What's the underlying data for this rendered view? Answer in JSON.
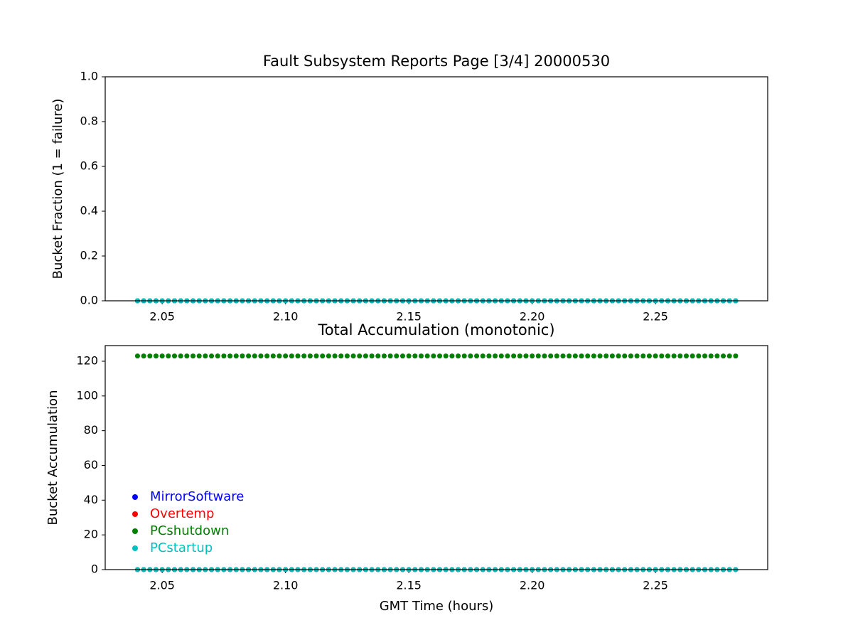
{
  "chart_data": [
    {
      "type": "scatter",
      "title": "Fault Subsystem Reports Page [3/4] 20000530",
      "y_label": "Bucket Fraction (1 = failure)",
      "x": [
        2.04,
        2.0425,
        2.045,
        2.0475,
        2.05,
        2.0525,
        2.055,
        2.0575,
        2.06,
        2.0625,
        2.065,
        2.0675,
        2.07,
        2.0725,
        2.075,
        2.0775,
        2.08,
        2.0825,
        2.085,
        2.0875,
        2.09,
        2.0925,
        2.095,
        2.0975,
        2.1,
        2.1025,
        2.105,
        2.1075,
        2.11,
        2.1125,
        2.115,
        2.1175,
        2.12,
        2.1225,
        2.125,
        2.1275,
        2.13,
        2.1325,
        2.135,
        2.1375,
        2.14,
        2.1425,
        2.145,
        2.1475,
        2.15,
        2.1525,
        2.155,
        2.1575,
        2.16,
        2.1625,
        2.165,
        2.1675,
        2.17,
        2.1725,
        2.175,
        2.1775,
        2.18,
        2.1825,
        2.185,
        2.1875,
        2.19,
        2.1925,
        2.195,
        2.1975,
        2.2,
        2.2025,
        2.205,
        2.2075,
        2.21,
        2.2125,
        2.215,
        2.2175,
        2.22,
        2.2225,
        2.225,
        2.2275,
        2.23,
        2.2325,
        2.235,
        2.2375,
        2.24,
        2.2425,
        2.245,
        2.2475,
        2.25,
        2.2525,
        2.255,
        2.2575,
        2.26,
        2.2625,
        2.265,
        2.2675,
        2.27,
        2.2725,
        2.275,
        2.2775,
        2.28,
        2.2825
      ],
      "series": [
        {
          "name": "MirrorSoftware",
          "color": "#0000ff",
          "values": [
            0,
            0,
            0,
            0,
            0,
            0,
            0,
            0,
            0,
            0,
            0,
            0,
            0,
            0,
            0,
            0,
            0,
            0,
            0,
            0,
            0,
            0,
            0,
            0,
            0,
            0,
            0,
            0,
            0,
            0,
            0,
            0,
            0,
            0,
            0,
            0,
            0,
            0,
            0,
            0,
            0,
            0,
            0,
            0,
            0,
            0,
            0,
            0,
            0,
            0,
            0,
            0,
            0,
            0,
            0,
            0,
            0,
            0,
            0,
            0,
            0,
            0,
            0,
            0,
            0,
            0,
            0,
            0,
            0,
            0,
            0,
            0,
            0,
            0,
            0,
            0,
            0,
            0,
            0,
            0,
            0,
            0,
            0,
            0,
            0,
            0,
            0,
            0,
            0,
            0,
            0,
            0,
            0,
            0,
            0,
            0,
            0,
            0
          ]
        },
        {
          "name": "Overtemp",
          "color": "#ff0000",
          "values": [
            0,
            0,
            0,
            0,
            0,
            0,
            0,
            0,
            0,
            0,
            0,
            0,
            0,
            0,
            0,
            0,
            0,
            0,
            0,
            0,
            0,
            0,
            0,
            0,
            0,
            0,
            0,
            0,
            0,
            0,
            0,
            0,
            0,
            0,
            0,
            0,
            0,
            0,
            0,
            0,
            0,
            0,
            0,
            0,
            0,
            0,
            0,
            0,
            0,
            0,
            0,
            0,
            0,
            0,
            0,
            0,
            0,
            0,
            0,
            0,
            0,
            0,
            0,
            0,
            0,
            0,
            0,
            0,
            0,
            0,
            0,
            0,
            0,
            0,
            0,
            0,
            0,
            0,
            0,
            0,
            0,
            0,
            0,
            0,
            0,
            0,
            0,
            0,
            0,
            0,
            0,
            0,
            0,
            0,
            0,
            0,
            0,
            0
          ]
        },
        {
          "name": "PCshutdown",
          "color": "#008000",
          "values": [
            0,
            0,
            0,
            0,
            0,
            0,
            0,
            0,
            0,
            0,
            0,
            0,
            0,
            0,
            0,
            0,
            0,
            0,
            0,
            0,
            0,
            0,
            0,
            0,
            0,
            0,
            0,
            0,
            0,
            0,
            0,
            0,
            0,
            0,
            0,
            0,
            0,
            0,
            0,
            0,
            0,
            0,
            0,
            0,
            0,
            0,
            0,
            0,
            0,
            0,
            0,
            0,
            0,
            0,
            0,
            0,
            0,
            0,
            0,
            0,
            0,
            0,
            0,
            0,
            0,
            0,
            0,
            0,
            0,
            0,
            0,
            0,
            0,
            0,
            0,
            0,
            0,
            0,
            0,
            0,
            0,
            0,
            0,
            0,
            0,
            0,
            0,
            0,
            0,
            0,
            0,
            0,
            0,
            0,
            0,
            0,
            0,
            0
          ]
        },
        {
          "name": "PCstartup",
          "color": "#00bfbf",
          "values": [
            0,
            0,
            0,
            0,
            0,
            0,
            0,
            0,
            0,
            0,
            0,
            0,
            0,
            0,
            0,
            0,
            0,
            0,
            0,
            0,
            0,
            0,
            0,
            0,
            0,
            0,
            0,
            0,
            0,
            0,
            0,
            0,
            0,
            0,
            0,
            0,
            0,
            0,
            0,
            0,
            0,
            0,
            0,
            0,
            0,
            0,
            0,
            0,
            0,
            0,
            0,
            0,
            0,
            0,
            0,
            0,
            0,
            0,
            0,
            0,
            0,
            0,
            0,
            0,
            0,
            0,
            0,
            0,
            0,
            0,
            0,
            0,
            0,
            0,
            0,
            0,
            0,
            0,
            0,
            0,
            0,
            0,
            0,
            0,
            0,
            0,
            0,
            0,
            0,
            0,
            0,
            0,
            0,
            0,
            0,
            0,
            0,
            0
          ]
        }
      ],
      "xlim": [
        2.0269,
        2.2955
      ],
      "xticks": [
        2.05,
        {
          "value": 2.1,
          "label": "2.10"
        },
        2.15,
        {
          "value": 2.2,
          "label": "2.20"
        },
        2.25
      ],
      "ylim": [
        0,
        1
      ],
      "yticks": [
        {
          "value": 0,
          "label": "0.0"
        },
        {
          "value": 0.2,
          "label": "0.2"
        },
        {
          "value": 0.4,
          "label": "0.4"
        },
        {
          "value": 0.6,
          "label": "0.6"
        },
        {
          "value": 0.8,
          "label": "0.8"
        },
        {
          "value": 1,
          "label": "1.0"
        }
      ]
    },
    {
      "type": "scatter",
      "title": "Total Accumulation (monotonic)",
      "y_label": "Bucket Accumulation",
      "x_label": "GMT Time (hours)",
      "legend": "lower left",
      "x": [
        2.04,
        2.0425,
        2.045,
        2.0475,
        2.05,
        2.0525,
        2.055,
        2.0575,
        2.06,
        2.0625,
        2.065,
        2.0675,
        2.07,
        2.0725,
        2.075,
        2.0775,
        2.08,
        2.0825,
        2.085,
        2.0875,
        2.09,
        2.0925,
        2.095,
        2.0975,
        2.1,
        2.1025,
        2.105,
        2.1075,
        2.11,
        2.1125,
        2.115,
        2.1175,
        2.12,
        2.1225,
        2.125,
        2.1275,
        2.13,
        2.1325,
        2.135,
        2.1375,
        2.14,
        2.1425,
        2.145,
        2.1475,
        2.15,
        2.1525,
        2.155,
        2.1575,
        2.16,
        2.1625,
        2.165,
        2.1675,
        2.17,
        2.1725,
        2.175,
        2.1775,
        2.18,
        2.1825,
        2.185,
        2.1875,
        2.19,
        2.1925,
        2.195,
        2.1975,
        2.2,
        2.2025,
        2.205,
        2.2075,
        2.21,
        2.2125,
        2.215,
        2.2175,
        2.22,
        2.2225,
        2.225,
        2.2275,
        2.23,
        2.2325,
        2.235,
        2.2375,
        2.24,
        2.2425,
        2.245,
        2.2475,
        2.25,
        2.2525,
        2.255,
        2.2575,
        2.26,
        2.2625,
        2.265,
        2.2675,
        2.27,
        2.2725,
        2.275,
        2.2775,
        2.28,
        2.2825
      ],
      "series": [
        {
          "name": "MirrorSoftware",
          "color": "#0000ff",
          "values": [
            0,
            0,
            0,
            0,
            0,
            0,
            0,
            0,
            0,
            0,
            0,
            0,
            0,
            0,
            0,
            0,
            0,
            0,
            0,
            0,
            0,
            0,
            0,
            0,
            0,
            0,
            0,
            0,
            0,
            0,
            0,
            0,
            0,
            0,
            0,
            0,
            0,
            0,
            0,
            0,
            0,
            0,
            0,
            0,
            0,
            0,
            0,
            0,
            0,
            0,
            0,
            0,
            0,
            0,
            0,
            0,
            0,
            0,
            0,
            0,
            0,
            0,
            0,
            0,
            0,
            0,
            0,
            0,
            0,
            0,
            0,
            0,
            0,
            0,
            0,
            0,
            0,
            0,
            0,
            0,
            0,
            0,
            0,
            0,
            0,
            0,
            0,
            0,
            0,
            0,
            0,
            0,
            0,
            0,
            0,
            0,
            0,
            0
          ]
        },
        {
          "name": "Overtemp",
          "color": "#ff0000",
          "values": [
            0,
            0,
            0,
            0,
            0,
            0,
            0,
            0,
            0,
            0,
            0,
            0,
            0,
            0,
            0,
            0,
            0,
            0,
            0,
            0,
            0,
            0,
            0,
            0,
            0,
            0,
            0,
            0,
            0,
            0,
            0,
            0,
            0,
            0,
            0,
            0,
            0,
            0,
            0,
            0,
            0,
            0,
            0,
            0,
            0,
            0,
            0,
            0,
            0,
            0,
            0,
            0,
            0,
            0,
            0,
            0,
            0,
            0,
            0,
            0,
            0,
            0,
            0,
            0,
            0,
            0,
            0,
            0,
            0,
            0,
            0,
            0,
            0,
            0,
            0,
            0,
            0,
            0,
            0,
            0,
            0,
            0,
            0,
            0,
            0,
            0,
            0,
            0,
            0,
            0,
            0,
            0,
            0,
            0,
            0,
            0,
            0,
            0
          ]
        },
        {
          "name": "PCshutdown",
          "color": "#008000",
          "values": [
            123,
            123,
            123,
            123,
            123,
            123,
            123,
            123,
            123,
            123,
            123,
            123,
            123,
            123,
            123,
            123,
            123,
            123,
            123,
            123,
            123,
            123,
            123,
            123,
            123,
            123,
            123,
            123,
            123,
            123,
            123,
            123,
            123,
            123,
            123,
            123,
            123,
            123,
            123,
            123,
            123,
            123,
            123,
            123,
            123,
            123,
            123,
            123,
            123,
            123,
            123,
            123,
            123,
            123,
            123,
            123,
            123,
            123,
            123,
            123,
            123,
            123,
            123,
            123,
            123,
            123,
            123,
            123,
            123,
            123,
            123,
            123,
            123,
            123,
            123,
            123,
            123,
            123,
            123,
            123,
            123,
            123,
            123,
            123,
            123,
            123,
            123,
            123,
            123,
            123,
            123,
            123,
            123,
            123,
            123,
            123,
            123,
            123
          ]
        },
        {
          "name": "PCstartup",
          "color": "#00bfbf",
          "values": [
            0,
            0,
            0,
            0,
            0,
            0,
            0,
            0,
            0,
            0,
            0,
            0,
            0,
            0,
            0,
            0,
            0,
            0,
            0,
            0,
            0,
            0,
            0,
            0,
            0,
            0,
            0,
            0,
            0,
            0,
            0,
            0,
            0,
            0,
            0,
            0,
            0,
            0,
            0,
            0,
            0,
            0,
            0,
            0,
            0,
            0,
            0,
            0,
            0,
            0,
            0,
            0,
            0,
            0,
            0,
            0,
            0,
            0,
            0,
            0,
            0,
            0,
            0,
            0,
            0,
            0,
            0,
            0,
            0,
            0,
            0,
            0,
            0,
            0,
            0,
            0,
            0,
            0,
            0,
            0,
            0,
            0,
            0,
            0,
            0,
            0,
            0,
            0,
            0,
            0,
            0,
            0,
            0,
            0,
            0,
            0,
            0,
            0
          ]
        }
      ],
      "xlim": [
        2.0269,
        2.2955
      ],
      "xticks": [
        2.05,
        {
          "value": 2.1,
          "label": "2.10"
        },
        2.15,
        {
          "value": 2.2,
          "label": "2.20"
        },
        2.25
      ],
      "ylim": [
        0,
        129
      ],
      "yticks": [
        0,
        20,
        40,
        60,
        80,
        100,
        120
      ]
    }
  ]
}
